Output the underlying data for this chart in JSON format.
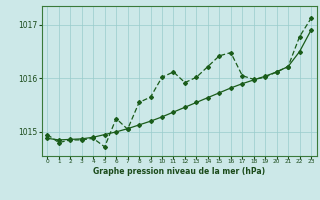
{
  "xlabel": "Graphe pression niveau de la mer (hPa)",
  "background_color": "#cce8e8",
  "grid_color": "#99cccc",
  "line_color": "#1a5c1a",
  "ylim": [
    1014.55,
    1017.35
  ],
  "xlim": [
    -0.5,
    23.5
  ],
  "yticks": [
    1015,
    1016,
    1017
  ],
  "xticks": [
    0,
    1,
    2,
    3,
    4,
    5,
    6,
    7,
    8,
    9,
    10,
    11,
    12,
    13,
    14,
    15,
    16,
    17,
    18,
    19,
    20,
    21,
    22,
    23
  ],
  "series1_x": [
    0,
    1,
    2,
    3,
    4,
    5,
    6,
    7,
    8,
    9,
    10,
    11,
    12,
    13,
    14,
    15,
    16,
    17,
    18,
    19,
    20,
    21,
    22,
    23
  ],
  "series1_y": [
    1014.95,
    1014.8,
    1014.85,
    1014.85,
    1014.88,
    1014.72,
    1015.25,
    1015.05,
    1015.55,
    1015.65,
    1016.02,
    1016.12,
    1015.92,
    1016.02,
    1016.22,
    1016.42,
    1016.48,
    1016.05,
    1015.98,
    1016.02,
    1016.12,
    1016.22,
    1016.78,
    1017.12
  ],
  "series2_x": [
    0,
    1,
    2,
    3,
    4,
    5,
    6,
    7,
    8,
    9,
    10,
    11,
    12,
    13,
    14,
    15,
    16,
    17,
    18,
    19,
    20,
    21,
    22,
    23
  ],
  "series2_y": [
    1014.88,
    1014.85,
    1014.86,
    1014.87,
    1014.9,
    1014.95,
    1015.0,
    1015.06,
    1015.13,
    1015.2,
    1015.28,
    1015.37,
    1015.46,
    1015.55,
    1015.64,
    1015.73,
    1015.82,
    1015.9,
    1015.97,
    1016.04,
    1016.12,
    1016.22,
    1016.5,
    1016.9
  ]
}
